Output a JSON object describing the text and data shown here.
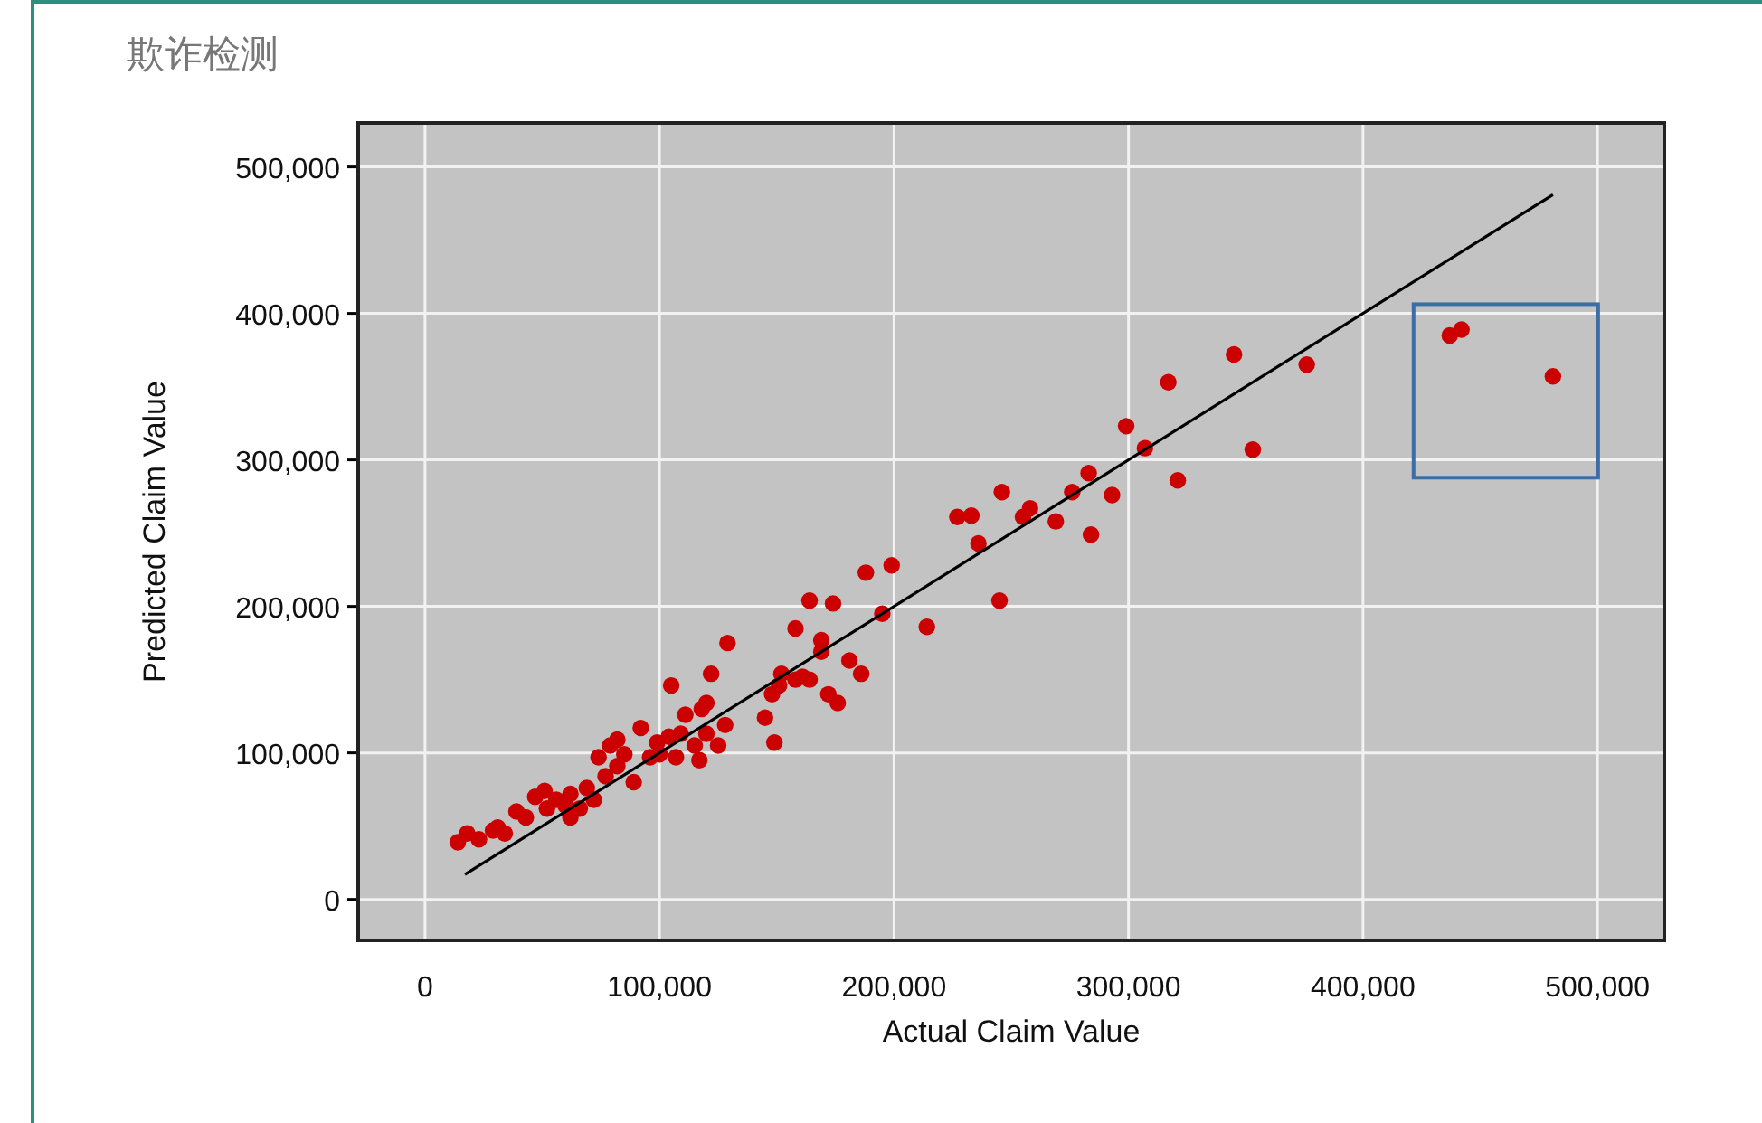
{
  "chart_data": {
    "type": "scatter",
    "title": "欺诈检测",
    "xlabel": "Actual Claim Value",
    "ylabel": "Predicted Claim Value",
    "xlim": [
      -28500,
      528500
    ],
    "ylim": [
      -28000,
      530000
    ],
    "xticks": [
      0,
      {
        "value": 100000,
        "label": "100,000"
      },
      {
        "value": 200000,
        "label": "200,000"
      },
      {
        "value": 300000,
        "label": "300,000"
      },
      {
        "value": 400000,
        "label": "400,000"
      },
      {
        "value": 500000,
        "label": "500,000"
      }
    ],
    "yticks": [
      0,
      {
        "value": 100000,
        "label": "100,000"
      },
      {
        "value": 200000,
        "label": "200,000"
      },
      {
        "value": 300000,
        "label": "300,000"
      },
      {
        "value": 400000,
        "label": "400,000"
      },
      {
        "value": 500000,
        "label": "500,000"
      }
    ],
    "grid": true,
    "series": [
      {
        "marker": "circle",
        "color": "#cc0000",
        "x": [
          14000,
          18000,
          23000,
          29000,
          31000,
          34000,
          39000,
          43000,
          47000,
          51000,
          52000,
          56000,
          60000,
          62000,
          62000,
          66000,
          69000,
          72000,
          74000,
          77000,
          79000,
          82000,
          82000,
          85000,
          89000,
          92000,
          96000,
          99000,
          100000,
          104000,
          105000,
          107000,
          109000,
          111000,
          115000,
          117000,
          118000,
          120000,
          120000,
          122000,
          125000,
          128000,
          129000,
          145000,
          148000,
          149000,
          151000,
          152000,
          158000,
          158000,
          161000,
          164000,
          164000,
          169000,
          169000,
          172000,
          174000,
          176000,
          181000,
          186000,
          188000,
          195000,
          199000,
          214000,
          227000,
          233000,
          236000,
          245000,
          246000,
          255000,
          258000,
          269000,
          276000,
          283000,
          284000,
          293000,
          299000,
          307000,
          317000,
          321000,
          345000,
          353000,
          376000,
          437000,
          442000,
          481000
        ],
        "values": [
          39000,
          45000,
          41000,
          47000,
          49000,
          45000,
          60000,
          56000,
          70000,
          74000,
          62000,
          68000,
          64000,
          56000,
          72000,
          62000,
          76000,
          68000,
          97000,
          84000,
          105000,
          91000,
          109000,
          99000,
          80000,
          117000,
          97000,
          107000,
          99000,
          111000,
          146000,
          97000,
          113000,
          126000,
          105000,
          95000,
          130000,
          134000,
          113000,
          154000,
          105000,
          119000,
          175000,
          124000,
          140000,
          107000,
          146000,
          154000,
          185000,
          150000,
          152000,
          204000,
          150000,
          177000,
          169000,
          140000,
          202000,
          134000,
          163000,
          154000,
          223000,
          195000,
          228000,
          186000,
          261000,
          262000,
          243000,
          204000,
          278000,
          261000,
          267000,
          258000,
          278000,
          291000,
          249000,
          276000,
          323000,
          308000,
          353000,
          286000,
          372000,
          307000,
          365000,
          385000,
          389000,
          357000
        ]
      },
      {
        "type": "line",
        "color": "#000000",
        "x": [
          17000,
          481000
        ],
        "values": [
          17000,
          481000
        ]
      }
    ]
  }
}
